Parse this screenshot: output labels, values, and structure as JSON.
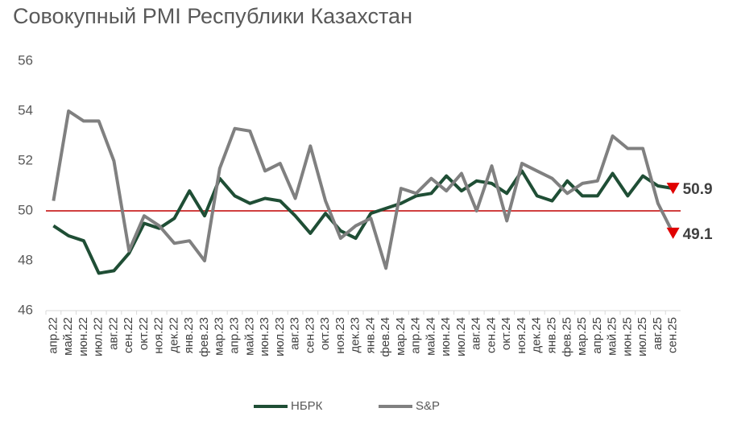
{
  "chart_data": {
    "type": "line",
    "title": "Совокупный PMI Республики Казахстан",
    "categories": [
      "апр.22",
      "май.22",
      "июн.22",
      "июл.22",
      "авг.22",
      "сен.22",
      "окт.22",
      "ноя.22",
      "дек.22",
      "янв.23",
      "фев.23",
      "мар.23",
      "апр.23",
      "май.23",
      "июн.23",
      "июл.23",
      "авг.23",
      "сен.23",
      "окт.23",
      "ноя.23",
      "дек.23",
      "янв.24",
      "фев.24",
      "мар.24",
      "апр.24",
      "май.24",
      "июн.24",
      "июл.24",
      "авг.24",
      "сен.24",
      "окт.24",
      "ноя.24",
      "дек.24",
      "янв.25",
      "фев.25",
      "мар.25",
      "апр.25",
      "май.25",
      "июн.25",
      "июл.25",
      "авг.25",
      "сен.25"
    ],
    "series": [
      {
        "name": "НБРК",
        "color": "#1f4e35",
        "values": [
          49.4,
          49.0,
          48.8,
          47.5,
          47.6,
          48.3,
          49.5,
          49.3,
          49.7,
          50.8,
          49.8,
          51.3,
          50.6,
          50.3,
          50.5,
          50.4,
          49.8,
          49.1,
          49.9,
          49.2,
          48.9,
          49.9,
          50.1,
          50.3,
          50.6,
          50.7,
          51.4,
          50.8,
          51.2,
          51.1,
          50.7,
          51.6,
          50.6,
          50.4,
          51.2,
          50.6,
          50.6,
          51.5,
          50.6,
          51.4,
          51.0,
          50.9
        ]
      },
      {
        "name": "S&P",
        "color": "#808080",
        "values": [
          50.4,
          54.0,
          53.6,
          53.6,
          52.0,
          48.4,
          49.8,
          49.4,
          48.7,
          48.8,
          48.0,
          51.7,
          53.3,
          53.2,
          51.6,
          51.9,
          50.5,
          52.6,
          50.4,
          48.9,
          49.4,
          49.7,
          47.7,
          50.9,
          50.7,
          51.3,
          50.8,
          51.5,
          50.0,
          51.8,
          49.6,
          51.9,
          51.6,
          51.3,
          50.7,
          51.1,
          51.2,
          53.0,
          52.5,
          52.5,
          50.3,
          49.1
        ]
      }
    ],
    "reference_line": {
      "value": 50,
      "color": "#c00000"
    },
    "ylim": [
      46,
      56
    ],
    "yticks": [
      46,
      48,
      50,
      52,
      54,
      56
    ],
    "legend": "bottom"
  }
}
